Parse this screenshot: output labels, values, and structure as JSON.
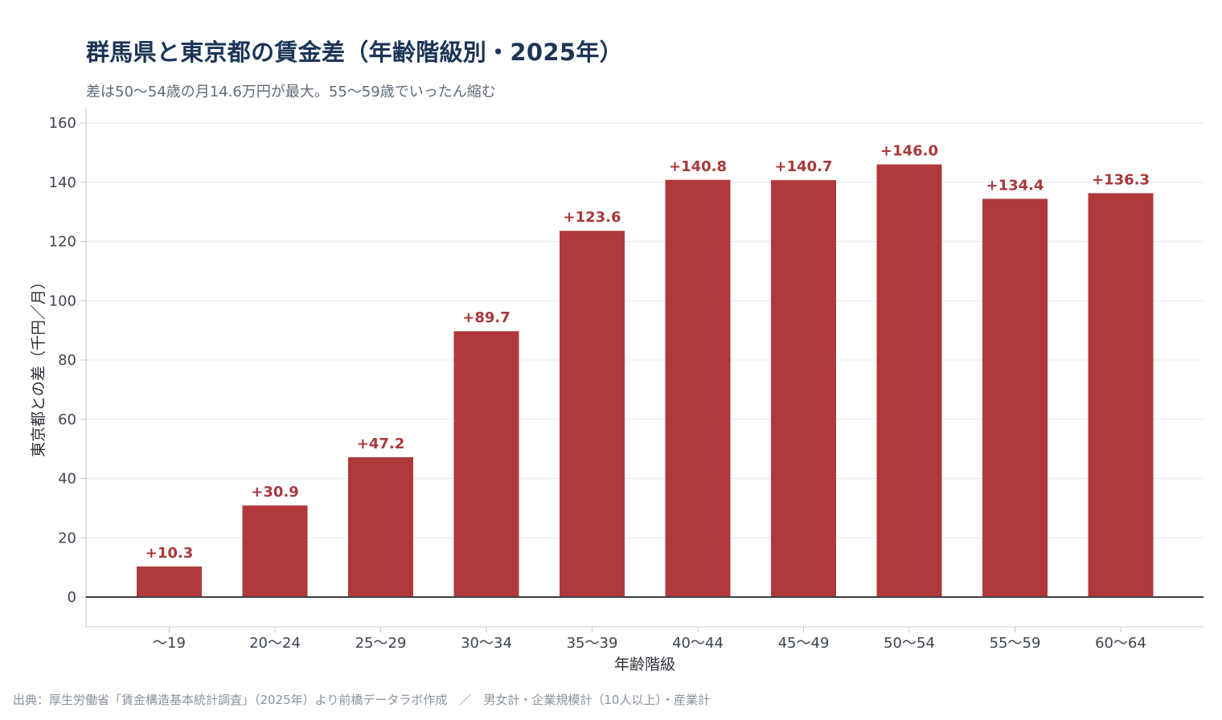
{
  "title": "群馬県と東京都の賃金差（年齢階級別・2025年）",
  "subtitle": "差は50〜54歳の月14.6万円が最大。55〜59歳でいったん縮む",
  "source": "出典：厚生労働省「賃金構造基本統計調査」（2025年）より前橋データラボ作成　／　男女計・企業規模計（10人以上）・産業計",
  "colors": {
    "bar": "#b0393b",
    "label": "#a8383b",
    "title": "#1c3557"
  },
  "chart_data": {
    "type": "bar",
    "title": "群馬県と東京都の賃金差（年齢階級別・2025年）",
    "subtitle": "差は50〜54歳の月14.6万円が最大。55〜59歳でいったん縮む",
    "xlabel": "年齢階級",
    "ylabel": "東京都との差（千円／月）",
    "categories": [
      "〜19",
      "20〜24",
      "25〜29",
      "30〜34",
      "35〜39",
      "40〜44",
      "45〜49",
      "50〜54",
      "55〜59",
      "60〜64"
    ],
    "values": [
      10.3,
      30.9,
      47.2,
      89.7,
      123.6,
      140.8,
      140.7,
      146.0,
      134.4,
      136.3
    ],
    "data_labels": [
      "+10.3",
      "+30.9",
      "+47.2",
      "+89.7",
      "+123.6",
      "+140.8",
      "+140.7",
      "+146.0",
      "+134.4",
      "+136.3"
    ],
    "ylim": [
      -10,
      160
    ],
    "yticks": [
      0,
      20,
      40,
      60,
      80,
      100,
      120,
      140,
      160
    ],
    "grid": true,
    "legend": "none"
  }
}
